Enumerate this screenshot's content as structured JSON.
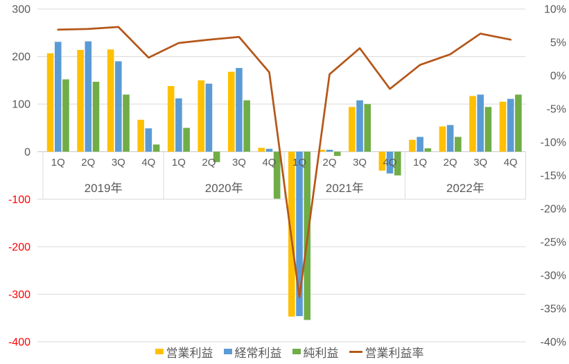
{
  "chart_data": {
    "type": "combo",
    "title": "",
    "categories": [
      "1Q",
      "2Q",
      "3Q",
      "4Q",
      "1Q",
      "2Q",
      "3Q",
      "4Q",
      "1Q",
      "2Q",
      "3Q",
      "4Q",
      "1Q",
      "2Q",
      "3Q",
      "4Q"
    ],
    "year_groups": [
      {
        "label": "2019年",
        "quarters": 4
      },
      {
        "label": "2020年",
        "quarters": 4
      },
      {
        "label": "2021年",
        "quarters": 4
      },
      {
        "label": "2022年",
        "quarters": 4
      }
    ],
    "series": [
      {
        "id": "operating-profit",
        "name": "営業利益",
        "type": "bar",
        "color": "#FFC000",
        "values": [
          207,
          214,
          215,
          67,
          138,
          150,
          168,
          8,
          -347,
          4,
          94,
          -40,
          25,
          53,
          117,
          105
        ]
      },
      {
        "id": "ordinary-profit",
        "name": "経常利益",
        "type": "bar",
        "color": "#5B9BD5",
        "values": [
          231,
          232,
          190,
          49,
          112,
          143,
          176,
          6,
          -346,
          4,
          108,
          -46,
          31,
          56,
          120,
          111
        ]
      },
      {
        "id": "net-profit",
        "name": "純利益",
        "type": "bar",
        "color": "#70AD47",
        "values": [
          152,
          147,
          120,
          15,
          50,
          -22,
          108,
          -99,
          -354,
          -9,
          100,
          -50,
          7,
          31,
          94,
          120
        ]
      },
      {
        "id": "operating-margin",
        "name": "営業利益率",
        "type": "line",
        "axis": "right",
        "color": "#B5571A",
        "values": [
          6.9,
          7.0,
          7.3,
          2.7,
          4.9,
          5.4,
          5.8,
          0.5,
          -33.3,
          0.2,
          4.1,
          -2.0,
          1.6,
          3.2,
          6.3,
          5.4
        ]
      }
    ],
    "left_axis": {
      "min": -400,
      "max": 300,
      "step": 100,
      "tick_values": [
        300,
        200,
        100,
        0,
        -100,
        -200,
        -300,
        -400
      ],
      "tick_labels": [
        "300",
        "200",
        "100",
        "0",
        "-100",
        "-200",
        "-300",
        "-400"
      ],
      "text_color": "#595959",
      "negative_text_color": "#FF0000"
    },
    "right_axis": {
      "min": -40,
      "max": 10,
      "step": 5,
      "tick_values": [
        10,
        5,
        0,
        -5,
        -10,
        -15,
        -20,
        -25,
        -30,
        -35,
        -40
      ],
      "tick_labels": [
        "10%",
        "5%",
        "0%",
        "-5%",
        "-10%",
        "-15%",
        "-20%",
        "-25%",
        "-30%",
        "-35%",
        "-40%"
      ],
      "text_color": "#595959"
    },
    "legend": {
      "position": "bottom",
      "entries": [
        "営業利益",
        "経常利益",
        "純利益",
        "営業利益率"
      ]
    },
    "grid": true
  },
  "colors": {
    "background": "#FFFFFF",
    "gridline": "#D9D9D9",
    "axis_line": "#C6C6C6",
    "band_border": "#D9D9D9",
    "category_text": "#595959"
  }
}
